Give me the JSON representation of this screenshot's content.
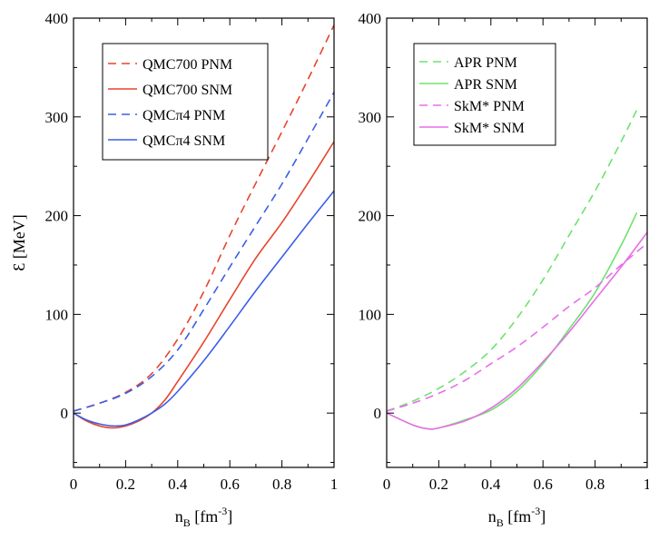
{
  "chart_data": [
    {
      "type": "line",
      "title": "",
      "ylabel": "Ɛ [MeV]",
      "xlabel_base": "n",
      "xlabel_sub": "B",
      "xlabel_unit": " [fm",
      "xlabel_sup": "-3",
      "xlabel_close": "]",
      "xlim": [
        0,
        1
      ],
      "ylim": [
        -55,
        400
      ],
      "xticks": [
        0,
        0.2,
        0.4,
        0.6,
        0.8,
        1
      ],
      "xtick_labels": [
        "0",
        "0.2",
        "0.4",
        "0.6",
        "0.8",
        "1"
      ],
      "yticks": [
        0,
        100,
        200,
        300,
        400
      ],
      "ytick_labels": [
        "0",
        "100",
        "200",
        "300",
        "400"
      ],
      "legend_position": "top-center",
      "series": [
        {
          "name": "QMC700 PNM",
          "color": "#e8442c",
          "dash": true,
          "x": [
            0,
            0.1,
            0.2,
            0.3,
            0.4,
            0.5,
            0.6,
            0.7,
            0.8,
            0.9,
            1.0
          ],
          "y": [
            2,
            10,
            21,
            40,
            75,
            123,
            180,
            233,
            285,
            338,
            393
          ]
        },
        {
          "name": "QMC700 SNM",
          "color": "#e8442c",
          "dash": false,
          "x": [
            0,
            0.05,
            0.1,
            0.15,
            0.2,
            0.25,
            0.3,
            0.35,
            0.4,
            0.5,
            0.6,
            0.7,
            0.8,
            0.9,
            1.0
          ],
          "y": [
            0,
            -8,
            -13,
            -15,
            -13,
            -8,
            0,
            13,
            32,
            72,
            115,
            157,
            193,
            233,
            275
          ]
        },
        {
          "name": "QMCπ4 PNM",
          "color": "#3b5ee8",
          "dash": true,
          "x": [
            0,
            0.1,
            0.2,
            0.3,
            0.4,
            0.5,
            0.6,
            0.7,
            0.8,
            0.9,
            1.0
          ],
          "y": [
            2,
            10,
            20,
            37,
            64,
            105,
            148,
            190,
            232,
            278,
            325
          ]
        },
        {
          "name": "QMCπ4 SNM",
          "color": "#3b5ee8",
          "dash": false,
          "x": [
            0,
            0.05,
            0.1,
            0.15,
            0.2,
            0.25,
            0.3,
            0.35,
            0.4,
            0.5,
            0.6,
            0.7,
            0.8,
            0.9,
            1.0
          ],
          "y": [
            0,
            -7,
            -11,
            -13,
            -12,
            -7,
            0,
            9,
            22,
            53,
            88,
            124,
            158,
            192,
            225
          ]
        }
      ]
    },
    {
      "type": "line",
      "title": "",
      "ylabel": "",
      "xlabel_base": "n",
      "xlabel_sub": "B",
      "xlabel_unit": " [fm",
      "xlabel_sup": "-3",
      "xlabel_close": "]",
      "xlim": [
        0,
        1
      ],
      "ylim": [
        -55,
        400
      ],
      "xticks": [
        0,
        0.2,
        0.4,
        0.6,
        0.8,
        1
      ],
      "xtick_labels": [
        "0",
        "0.2",
        "0.4",
        "0.6",
        "0.8",
        "1"
      ],
      "yticks": [
        0,
        100,
        200,
        300,
        400
      ],
      "ytick_labels": [
        "0",
        "100",
        "200",
        "300",
        "400"
      ],
      "legend_position": "top-center",
      "series": [
        {
          "name": "APR PNM",
          "color": "#6ee26e",
          "dash": true,
          "x": [
            0,
            0.1,
            0.2,
            0.3,
            0.4,
            0.5,
            0.6,
            0.7,
            0.8,
            0.9,
            0.96
          ],
          "y": [
            2,
            12,
            25,
            42,
            64,
            96,
            135,
            180,
            225,
            275,
            307
          ]
        },
        {
          "name": "APR SNM",
          "color": "#6ee26e",
          "dash": false,
          "x": [
            0,
            0.1,
            0.16,
            0.2,
            0.3,
            0.4,
            0.5,
            0.6,
            0.7,
            0.8,
            0.9,
            0.96
          ],
          "y": [
            0,
            -12,
            -16,
            -15,
            -7,
            3,
            22,
            50,
            85,
            122,
            170,
            203
          ]
        },
        {
          "name": "SkM* PNM",
          "color": "#e86ee8",
          "dash": true,
          "x": [
            0,
            0.1,
            0.2,
            0.3,
            0.4,
            0.5,
            0.6,
            0.7,
            0.8,
            0.9,
            1.0
          ],
          "y": [
            2,
            10,
            20,
            33,
            50,
            67,
            87,
            108,
            127,
            150,
            172
          ]
        },
        {
          "name": "SkM* SNM",
          "color": "#e86ee8",
          "dash": false,
          "x": [
            0,
            0.1,
            0.16,
            0.2,
            0.3,
            0.4,
            0.5,
            0.6,
            0.7,
            0.8,
            0.9,
            1.0
          ],
          "y": [
            0,
            -12,
            -16,
            -15,
            -8,
            5,
            25,
            52,
            82,
            115,
            148,
            183
          ]
        }
      ]
    }
  ]
}
